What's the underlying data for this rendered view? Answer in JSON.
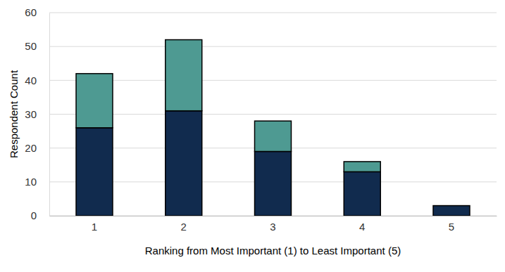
{
  "chart_data": {
    "type": "bar",
    "stacked": true,
    "x_label": "Ranking from Most Important (1) to Least Important (5)",
    "y_label": "Respondent Count",
    "categories": [
      "1",
      "2",
      "3",
      "4",
      "5"
    ],
    "series": [
      {
        "color": "#112b4e",
        "values": [
          26,
          31,
          19,
          13,
          3
        ]
      },
      {
        "color": "#4e9a92",
        "values": [
          16,
          21,
          9,
          3,
          0
        ]
      }
    ],
    "ylim": [
      0,
      60
    ],
    "yticks": [
      0,
      10,
      20,
      30,
      40,
      50,
      60
    ],
    "grid": true
  }
}
